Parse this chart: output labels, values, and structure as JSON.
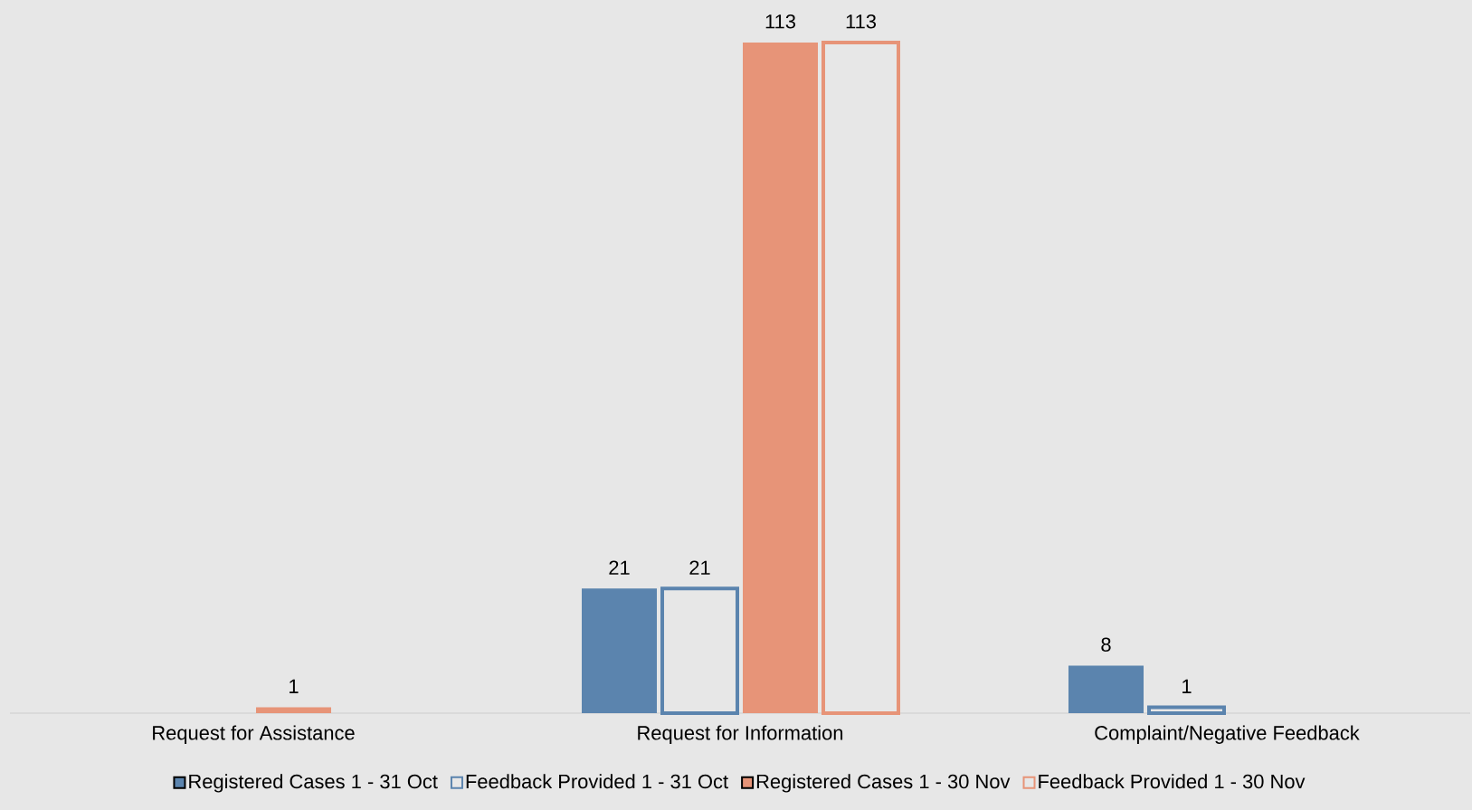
{
  "chart_data": {
    "type": "bar",
    "categories": [
      "Request for Assistance",
      "Request for Information",
      "Complaint/Negative Feedback"
    ],
    "series": [
      {
        "name": "Registered Cases 1 - 31 Oct",
        "color": "#5b84ae",
        "values": [
          null,
          21,
          8
        ]
      },
      {
        "name": "Feedback Provided 1 - 31 Oct",
        "color": "#5b84ae",
        "values": [
          null,
          21,
          1
        ]
      },
      {
        "name": "Registered Cases 1 - 30 Nov",
        "color": "#e79478",
        "values": [
          1,
          113,
          null
        ]
      },
      {
        "name": "Feedback Provided 1 - 30 Nov",
        "color": "#e79478",
        "values": [
          null,
          113,
          null
        ]
      }
    ],
    "data_labels": true,
    "legend": "bottom"
  }
}
